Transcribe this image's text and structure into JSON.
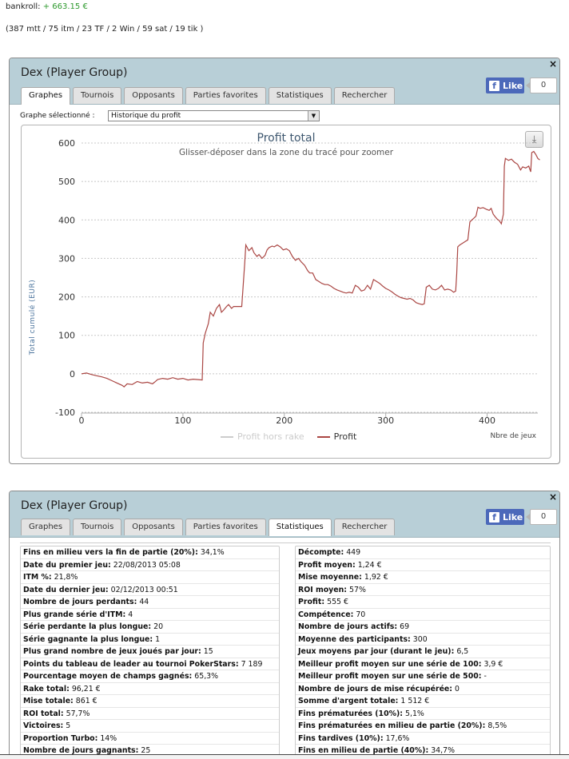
{
  "header": {
    "bankroll_label": "bankroll:",
    "bankroll_value": "+ 663.15 €",
    "summary": "(387 mtt / 75 itm / 23 TF / 2 Win / 59 sat / 19 tik )"
  },
  "panel_graph": {
    "title": "Dex (Player Group)",
    "close": "×",
    "like_label": "Like",
    "like_count": "0",
    "tabs": [
      {
        "label": "Graphes",
        "active": true
      },
      {
        "label": "Tournois",
        "active": false
      },
      {
        "label": "Opposants",
        "active": false
      },
      {
        "label": "Parties favorites",
        "active": false
      },
      {
        "label": "Statistiques",
        "active": false
      },
      {
        "label": "Rechercher",
        "active": false
      }
    ],
    "select_label": "Graphe sélectionné :",
    "select_value": "Historique du profit"
  },
  "chart_data": {
    "type": "line",
    "title": "Profit total",
    "subtitle": "Glisser-déposer dans la zone du tracé pour zoomer",
    "xlabel": "Nbre de jeux",
    "ylabel": "Total cumulé (EUR)",
    "xlim": [
      0,
      450
    ],
    "ylim": [
      -100,
      600
    ],
    "x_ticks": [
      0,
      100,
      200,
      300,
      400
    ],
    "y_ticks": [
      -100,
      0,
      100,
      200,
      300,
      400,
      500,
      600
    ],
    "grid": "horizontal dashed",
    "legend_position": "bottom",
    "series": [
      {
        "name": "Profit hors rake",
        "color": "#cccccc",
        "visible": false,
        "points": []
      },
      {
        "name": "Profit",
        "color": "#aa4643",
        "points": [
          [
            0,
            0
          ],
          [
            5,
            2
          ],
          [
            10,
            -2
          ],
          [
            15,
            -5
          ],
          [
            20,
            -8
          ],
          [
            25,
            -12
          ],
          [
            30,
            -18
          ],
          [
            35,
            -24
          ],
          [
            40,
            -30
          ],
          [
            42,
            -34
          ],
          [
            45,
            -26
          ],
          [
            50,
            -28
          ],
          [
            55,
            -20
          ],
          [
            60,
            -24
          ],
          [
            65,
            -22
          ],
          [
            70,
            -26
          ],
          [
            72,
            -22
          ],
          [
            75,
            -15
          ],
          [
            80,
            -12
          ],
          [
            85,
            -14
          ],
          [
            90,
            -10
          ],
          [
            95,
            -14
          ],
          [
            100,
            -12
          ],
          [
            105,
            -16
          ],
          [
            110,
            -14
          ],
          [
            115,
            -15
          ],
          [
            119,
            -16
          ],
          [
            120,
            80
          ],
          [
            122,
            105
          ],
          [
            125,
            130
          ],
          [
            127,
            160
          ],
          [
            130,
            150
          ],
          [
            133,
            170
          ],
          [
            136,
            180
          ],
          [
            138,
            160
          ],
          [
            140,
            165
          ],
          [
            143,
            175
          ],
          [
            145,
            180
          ],
          [
            148,
            170
          ],
          [
            150,
            175
          ],
          [
            155,
            175
          ],
          [
            158,
            175
          ],
          [
            161,
            290
          ],
          [
            162,
            335
          ],
          [
            165,
            320
          ],
          [
            168,
            328
          ],
          [
            170,
            315
          ],
          [
            173,
            305
          ],
          [
            175,
            310
          ],
          [
            178,
            300
          ],
          [
            181,
            308
          ],
          [
            183,
            322
          ],
          [
            185,
            328
          ],
          [
            188,
            332
          ],
          [
            190,
            330
          ],
          [
            193,
            335
          ],
          [
            196,
            330
          ],
          [
            199,
            322
          ],
          [
            202,
            325
          ],
          [
            205,
            320
          ],
          [
            208,
            305
          ],
          [
            211,
            295
          ],
          [
            214,
            300
          ],
          [
            217,
            290
          ],
          [
            220,
            282
          ],
          [
            223,
            268
          ],
          [
            225,
            262
          ],
          [
            228,
            262
          ],
          [
            231,
            245
          ],
          [
            234,
            240
          ],
          [
            237,
            235
          ],
          [
            240,
            232
          ],
          [
            243,
            232
          ],
          [
            246,
            228
          ],
          [
            249,
            222
          ],
          [
            252,
            218
          ],
          [
            255,
            215
          ],
          [
            258,
            212
          ],
          [
            261,
            210
          ],
          [
            264,
            212
          ],
          [
            267,
            210
          ],
          [
            270,
            230
          ],
          [
            273,
            225
          ],
          [
            276,
            215
          ],
          [
            279,
            218
          ],
          [
            282,
            230
          ],
          [
            285,
            220
          ],
          [
            288,
            245
          ],
          [
            291,
            240
          ],
          [
            294,
            235
          ],
          [
            297,
            228
          ],
          [
            300,
            222
          ],
          [
            303,
            218
          ],
          [
            306,
            213
          ],
          [
            309,
            207
          ],
          [
            312,
            202
          ],
          [
            315,
            198
          ],
          [
            318,
            196
          ],
          [
            321,
            194
          ],
          [
            324,
            196
          ],
          [
            327,
            192
          ],
          [
            330,
            185
          ],
          [
            333,
            182
          ],
          [
            336,
            180
          ],
          [
            338,
            182
          ],
          [
            340,
            225
          ],
          [
            343,
            230
          ],
          [
            346,
            220
          ],
          [
            349,
            218
          ],
          [
            352,
            222
          ],
          [
            355,
            230
          ],
          [
            358,
            218
          ],
          [
            361,
            220
          ],
          [
            364,
            218
          ],
          [
            367,
            212
          ],
          [
            369,
            215
          ],
          [
            370,
            260
          ],
          [
            371,
            330
          ],
          [
            373,
            335
          ],
          [
            376,
            340
          ],
          [
            379,
            345
          ],
          [
            381,
            348
          ],
          [
            383,
            395
          ],
          [
            385,
            400
          ],
          [
            387,
            405
          ],
          [
            389,
            410
          ],
          [
            391,
            433
          ],
          [
            393,
            430
          ],
          [
            396,
            432
          ],
          [
            399,
            428
          ],
          [
            402,
            425
          ],
          [
            404,
            430
          ],
          [
            406,
            415
          ],
          [
            408,
            408
          ],
          [
            410,
            402
          ],
          [
            412,
            398
          ],
          [
            414,
            390
          ],
          [
            416,
            415
          ],
          [
            417,
            540
          ],
          [
            418,
            560
          ],
          [
            421,
            555
          ],
          [
            424,
            558
          ],
          [
            427,
            550
          ],
          [
            430,
            545
          ],
          [
            433,
            530
          ],
          [
            435,
            538
          ],
          [
            438,
            535
          ],
          [
            441,
            540
          ],
          [
            443,
            525
          ],
          [
            444,
            575
          ],
          [
            446,
            578
          ],
          [
            448,
            570
          ],
          [
            450,
            560
          ],
          [
            452,
            556
          ]
        ]
      }
    ]
  },
  "panel_stats": {
    "title": "Dex (Player Group)",
    "close": "×",
    "like_label": "Like",
    "like_count": "0",
    "tabs": [
      {
        "label": "Graphes",
        "active": false
      },
      {
        "label": "Tournois",
        "active": false
      },
      {
        "label": "Opposants",
        "active": false
      },
      {
        "label": "Parties favorites",
        "active": false
      },
      {
        "label": "Statistiques",
        "active": true
      },
      {
        "label": "Rechercher",
        "active": false
      }
    ],
    "left_stats": [
      {
        "label": "Fins en milieu vers la fin de partie (20%):",
        "value": "34,1%"
      },
      {
        "label": "Date du premier jeu:",
        "value": "22/08/2013 05:08"
      },
      {
        "label": "ITM %:",
        "value": "21,8%"
      },
      {
        "label": "Date du dernier jeu:",
        "value": "02/12/2013 00:51"
      },
      {
        "label": "Nombre de jours perdants:",
        "value": "44"
      },
      {
        "label": "Plus grande série d'ITM:",
        "value": "4"
      },
      {
        "label": "Série perdante la plus longue:",
        "value": "20"
      },
      {
        "label": "Série gagnante la plus longue:",
        "value": "1"
      },
      {
        "label": "Plus grand nombre de jeux joués par jour:",
        "value": "15"
      },
      {
        "label": "Points du tableau de leader au tournoi PokerStars:",
        "value": "7 189"
      },
      {
        "label": "Pourcentage moyen de champs gagnés:",
        "value": "65,3%"
      },
      {
        "label": "Rake total:",
        "value": "96,21 €"
      },
      {
        "label": "Mise totale:",
        "value": "861 €"
      },
      {
        "label": "ROI total:",
        "value": "57,7%"
      },
      {
        "label": "Victoires:",
        "value": "5"
      },
      {
        "label": "Proportion Turbo:",
        "value": "14%"
      },
      {
        "label": "Nombre de jours gagnants:",
        "value": "25"
      }
    ],
    "right_stats": [
      {
        "label": "Décompte:",
        "value": "449"
      },
      {
        "label": "Profit moyen:",
        "value": "1,24 €"
      },
      {
        "label": "Mise moyenne:",
        "value": "1,92 €"
      },
      {
        "label": "ROI moyen:",
        "value": "57%"
      },
      {
        "label": "Profit:",
        "value": "555 €"
      },
      {
        "label": "Compétence:",
        "value": "70"
      },
      {
        "label": "Nombre de jours actifs:",
        "value": "69"
      },
      {
        "label": "Moyenne des participants:",
        "value": "300"
      },
      {
        "label": "Jeux moyens par jour (durant le jeu):",
        "value": "6,5"
      },
      {
        "label": "Meilleur profit moyen sur une série de 100:",
        "value": "3,9 €"
      },
      {
        "label": "Meilleur profit moyen sur une série de 500:",
        "value": "-"
      },
      {
        "label": "Nombre de jours de mise récupérée:",
        "value": "0"
      },
      {
        "label": "Somme d'argent totale:",
        "value": "1 512 €"
      },
      {
        "label": "Fins prématurées (10%):",
        "value": "5,1%"
      },
      {
        "label": "Fins prématurées en milieu de partie (20%):",
        "value": "8,5%"
      },
      {
        "label": "Fins tardives (10%):",
        "value": "17,6%"
      },
      {
        "label": "Fins en milieu de partie (40%):",
        "value": "34,7%"
      }
    ]
  }
}
